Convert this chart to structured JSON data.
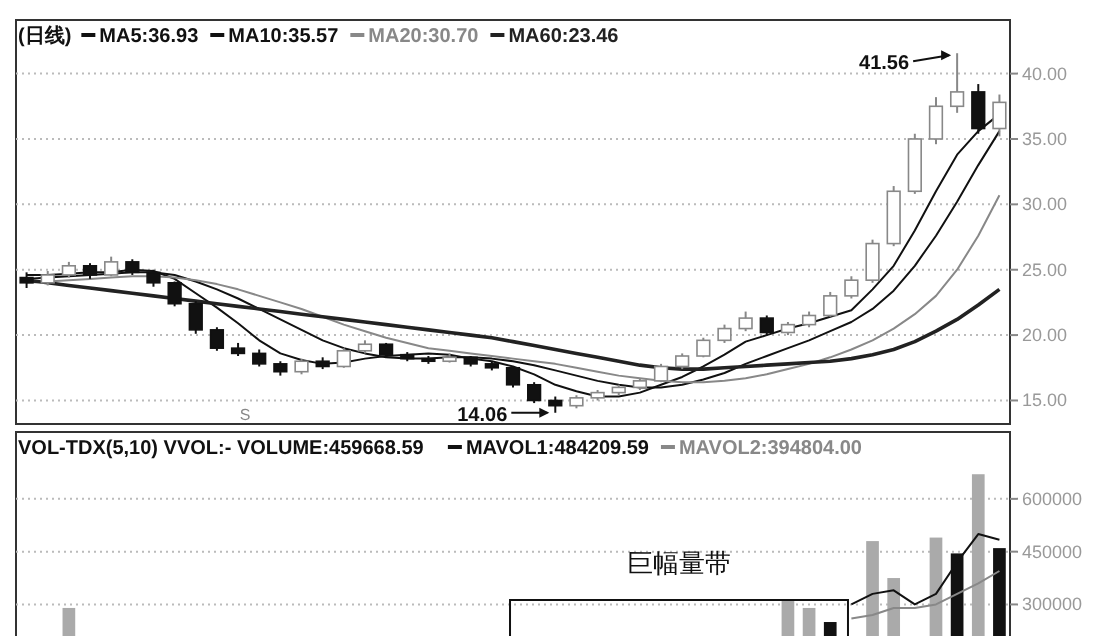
{
  "chart_data": [
    {
      "type": "candlestick",
      "title": "(日线)",
      "tick_labels": "y",
      "grid": "y",
      "legend": "top left",
      "categories": [
        null,
        null,
        null,
        null,
        null,
        null,
        null,
        null,
        null,
        null,
        null,
        null,
        null,
        null,
        null,
        null,
        null,
        null,
        null,
        null,
        null,
        null,
        null,
        null,
        null,
        null,
        null,
        null,
        null,
        null,
        null,
        null,
        null,
        null,
        null,
        null,
        null,
        null,
        null,
        null,
        null,
        null,
        null,
        null,
        null,
        null,
        null
      ],
      "ohlc": [
        [
          24.4,
          24.8,
          23.6,
          24.0
        ],
        [
          24.0,
          24.9,
          23.8,
          24.6
        ],
        [
          24.6,
          25.6,
          24.4,
          25.3
        ],
        [
          25.3,
          25.5,
          24.3,
          24.6
        ],
        [
          24.6,
          26.0,
          24.5,
          25.6
        ],
        [
          25.6,
          25.8,
          24.6,
          24.8
        ],
        [
          24.8,
          25.0,
          23.7,
          24.0
        ],
        [
          24.0,
          24.1,
          22.2,
          22.4
        ],
        [
          22.4,
          22.6,
          20.1,
          20.4
        ],
        [
          20.4,
          20.6,
          18.8,
          19.0
        ],
        [
          19.0,
          19.4,
          18.4,
          18.6
        ],
        [
          18.6,
          18.9,
          17.6,
          17.8
        ],
        [
          17.8,
          18.0,
          16.9,
          17.2
        ],
        [
          17.2,
          18.2,
          17.0,
          18.0
        ],
        [
          18.0,
          18.3,
          17.4,
          17.6
        ],
        [
          17.6,
          19.0,
          17.5,
          18.8
        ],
        [
          18.8,
          19.6,
          18.6,
          19.3
        ],
        [
          19.3,
          19.4,
          18.3,
          18.5
        ],
        [
          18.5,
          18.7,
          18.0,
          18.2
        ],
        [
          18.2,
          18.4,
          17.8,
          18.0
        ],
        [
          18.0,
          18.6,
          17.9,
          18.3
        ],
        [
          18.3,
          18.4,
          17.6,
          17.8
        ],
        [
          17.8,
          18.0,
          17.3,
          17.5
        ],
        [
          17.5,
          17.6,
          16.0,
          16.2
        ],
        [
          16.2,
          16.4,
          14.8,
          15.0
        ],
        [
          15.0,
          15.3,
          14.06,
          14.6
        ],
        [
          14.6,
          15.4,
          14.4,
          15.2
        ],
        [
          15.2,
          15.8,
          15.0,
          15.6
        ],
        [
          15.6,
          16.2,
          15.4,
          16.0
        ],
        [
          16.0,
          16.7,
          15.8,
          16.5
        ],
        [
          16.5,
          17.8,
          16.4,
          17.6
        ],
        [
          17.6,
          18.6,
          17.4,
          18.4
        ],
        [
          18.4,
          19.8,
          18.3,
          19.6
        ],
        [
          19.6,
          20.8,
          19.4,
          20.5
        ],
        [
          20.5,
          21.8,
          20.3,
          21.3
        ],
        [
          21.3,
          21.5,
          20.0,
          20.2
        ],
        [
          20.2,
          21.0,
          20.0,
          20.8
        ],
        [
          20.8,
          21.8,
          20.6,
          21.5
        ],
        [
          21.5,
          23.3,
          21.4,
          23.0
        ],
        [
          23.0,
          24.5,
          22.8,
          24.2
        ],
        [
          24.2,
          27.3,
          24.0,
          27.0
        ],
        [
          27.0,
          31.4,
          26.8,
          31.0
        ],
        [
          31.0,
          35.4,
          30.8,
          35.0
        ],
        [
          35.0,
          38.2,
          34.6,
          37.5
        ],
        [
          37.5,
          41.56,
          37.0,
          38.6
        ],
        [
          38.6,
          39.2,
          35.4,
          35.8
        ],
        [
          35.8,
          38.4,
          35.2,
          37.8
        ]
      ],
      "series": [
        {
          "name": "MA5:36.93",
          "type": "line",
          "color": "#111111",
          "values": [
            24.6,
            24.6,
            24.7,
            24.8,
            24.8,
            25.0,
            24.9,
            24.3,
            23.2,
            22.1,
            20.9,
            19.6,
            18.6,
            18.1,
            17.8,
            17.9,
            18.2,
            18.4,
            18.5,
            18.6,
            18.5,
            18.2,
            18.0,
            17.6,
            17.0,
            16.2,
            15.7,
            15.3,
            15.3,
            15.6,
            16.2,
            16.8,
            17.6,
            18.5,
            19.5,
            20.0,
            20.5,
            20.9,
            21.4,
            21.9,
            23.5,
            25.3,
            28.0,
            31.0,
            33.8,
            35.6,
            36.9
          ]
        },
        {
          "name": "MA10:35.57",
          "type": "line",
          "color": "#111111",
          "values": [
            24.3,
            24.4,
            24.5,
            24.6,
            24.7,
            24.8,
            24.8,
            24.6,
            24.1,
            23.5,
            22.8,
            22.0,
            21.2,
            20.4,
            19.6,
            19.0,
            18.6,
            18.3,
            18.2,
            18.2,
            18.3,
            18.3,
            18.2,
            18.0,
            17.7,
            17.3,
            16.9,
            16.5,
            16.2,
            16.0,
            16.0,
            16.2,
            16.6,
            17.1,
            17.8,
            18.4,
            19.0,
            19.6,
            20.3,
            21.0,
            22.0,
            23.4,
            25.3,
            27.6,
            30.2,
            33.0,
            35.6
          ]
        },
        {
          "name": "MA20:30.70",
          "type": "line",
          "color": "#888888",
          "values": [
            24.0,
            24.1,
            24.2,
            24.3,
            24.4,
            24.5,
            24.5,
            24.4,
            24.2,
            23.9,
            23.5,
            23.0,
            22.5,
            22.0,
            21.4,
            20.8,
            20.3,
            19.8,
            19.4,
            19.0,
            18.8,
            18.6,
            18.4,
            18.2,
            18.0,
            17.8,
            17.5,
            17.2,
            16.9,
            16.7,
            16.5,
            16.4,
            16.4,
            16.5,
            16.7,
            17.0,
            17.4,
            17.8,
            18.3,
            18.9,
            19.6,
            20.5,
            21.6,
            23.0,
            25.0,
            27.6,
            30.7
          ]
        },
        {
          "name": "MA60:23.46",
          "type": "line",
          "color": "#222222",
          "values": [
            24.2,
            24.0,
            23.8,
            23.6,
            23.4,
            23.2,
            23.0,
            22.8,
            22.6,
            22.4,
            22.2,
            22.0,
            21.8,
            21.6,
            21.4,
            21.2,
            21.0,
            20.8,
            20.6,
            20.4,
            20.2,
            20.0,
            19.8,
            19.5,
            19.2,
            18.9,
            18.6,
            18.3,
            18.0,
            17.7,
            17.5,
            17.4,
            17.4,
            17.5,
            17.6,
            17.7,
            17.8,
            17.9,
            18.0,
            18.2,
            18.5,
            18.9,
            19.5,
            20.3,
            21.2,
            22.3,
            23.5
          ]
        }
      ],
      "ylim": [
        13.2,
        44.1
      ],
      "yticks": [
        {
          "value": 15,
          "label": "15.00"
        },
        {
          "value": 20,
          "label": "20.00"
        },
        {
          "value": 25,
          "label": "25.00"
        },
        {
          "value": 30,
          "label": "30.00"
        },
        {
          "value": 35,
          "label": "35.00"
        },
        {
          "value": 40,
          "label": "40.00"
        }
      ],
      "annotations": [
        "41.56",
        "14.06",
        "S"
      ]
    },
    {
      "type": "bar",
      "title": "VOL-TDX(5,10) VVOL:-  VOLUME:459668.59",
      "tick_labels": "y",
      "grid": "y",
      "legend": "top right",
      "categories": [
        null,
        null,
        null,
        null,
        null,
        null,
        null,
        null,
        null,
        null,
        null,
        null,
        null,
        null,
        null,
        null,
        null,
        null,
        null,
        null,
        null,
        null,
        null,
        null,
        null,
        null,
        null,
        null,
        null,
        null,
        null,
        null,
        null,
        null,
        null,
        null,
        null,
        null,
        null,
        null,
        null,
        null,
        null,
        null,
        null,
        null,
        null
      ],
      "values": [
        null,
        null,
        290000,
        null,
        null,
        null,
        null,
        null,
        null,
        null,
        null,
        null,
        null,
        null,
        null,
        null,
        null,
        null,
        null,
        null,
        null,
        null,
        null,
        null,
        null,
        null,
        null,
        null,
        null,
        null,
        null,
        null,
        null,
        null,
        null,
        null,
        310000,
        290000,
        250000,
        null,
        480000,
        375000,
        null,
        490000,
        445000,
        670000,
        460000
      ],
      "colors": [
        null,
        null,
        "#aaaaaa",
        null,
        null,
        null,
        null,
        null,
        null,
        null,
        null,
        null,
        null,
        null,
        null,
        null,
        null,
        null,
        null,
        null,
        null,
        null,
        null,
        null,
        null,
        null,
        null,
        null,
        null,
        null,
        null,
        null,
        null,
        null,
        null,
        null,
        "#aaaaaa",
        "#aaaaaa",
        "#111111",
        null,
        "#aaaaaa",
        "#aaaaaa",
        null,
        "#aaaaaa",
        "#111111",
        "#aaaaaa",
        "#111111"
      ],
      "series": [
        {
          "name": "MAVOL1:484209.59",
          "type": "line",
          "color": "#111111",
          "values": [
            null,
            null,
            null,
            null,
            null,
            null,
            null,
            null,
            null,
            null,
            null,
            null,
            null,
            null,
            null,
            null,
            null,
            null,
            null,
            null,
            null,
            null,
            null,
            null,
            null,
            null,
            null,
            null,
            null,
            null,
            null,
            null,
            null,
            null,
            null,
            null,
            null,
            null,
            null,
            300000,
            330000,
            340000,
            300000,
            330000,
            420000,
            500000,
            484000
          ]
        },
        {
          "name": "MAVOL2:394804.00",
          "type": "line",
          "color": "#888888",
          "values": [
            null,
            null,
            null,
            null,
            null,
            null,
            null,
            null,
            null,
            null,
            null,
            null,
            null,
            null,
            null,
            null,
            null,
            null,
            null,
            null,
            null,
            null,
            null,
            null,
            null,
            null,
            null,
            null,
            null,
            null,
            null,
            null,
            null,
            null,
            null,
            null,
            null,
            null,
            null,
            260000,
            270000,
            290000,
            290000,
            300000,
            330000,
            360000,
            395000
          ]
        }
      ],
      "ylim": [
        0,
        790000
      ],
      "yticks": [
        300000,
        450000,
        600000
      ],
      "annotations": [
        "巨幅量带"
      ]
    }
  ]
}
